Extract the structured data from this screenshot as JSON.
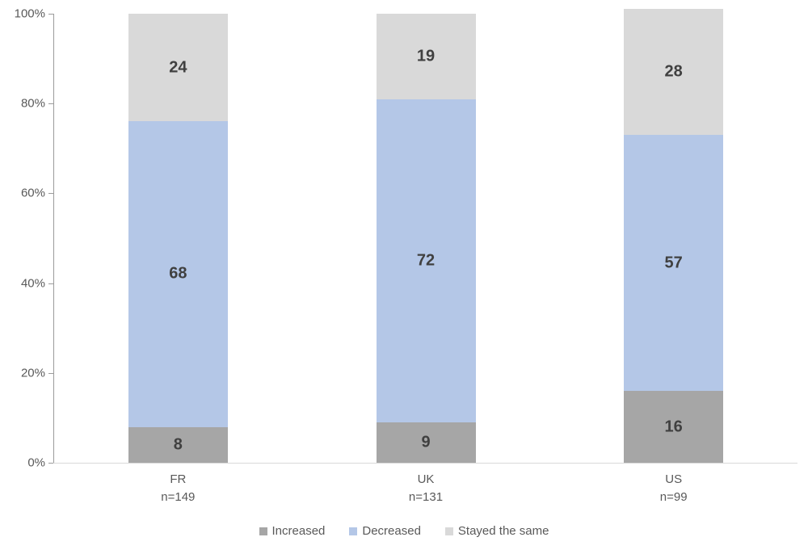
{
  "chart_data": {
    "type": "bar",
    "stacked": true,
    "orientation": "vertical",
    "categories": [
      "FR",
      "UK",
      "US"
    ],
    "category_sublabels": [
      "n=149",
      "n=131",
      "n=99"
    ],
    "series": [
      {
        "name": "Increased",
        "color": "#a6a6a6",
        "values": [
          8,
          9,
          16
        ]
      },
      {
        "name": "Decreased",
        "color": "#b4c7e7",
        "values": [
          68,
          72,
          57
        ]
      },
      {
        "name": "Stayed the same",
        "color": "#d9d9d9",
        "values": [
          24,
          19,
          28
        ]
      }
    ],
    "title": "",
    "xlabel": "",
    "ylabel": "",
    "ylim": [
      0,
      100
    ],
    "ytick_labels": [
      "0%",
      "20%",
      "40%",
      "60%",
      "80%",
      "100%"
    ],
    "ytick_values": [
      0,
      20,
      40,
      60,
      80,
      100
    ],
    "grid": false,
    "legend_position": "bottom",
    "value_label_color": "#404040",
    "axis_text_color": "#595959"
  }
}
